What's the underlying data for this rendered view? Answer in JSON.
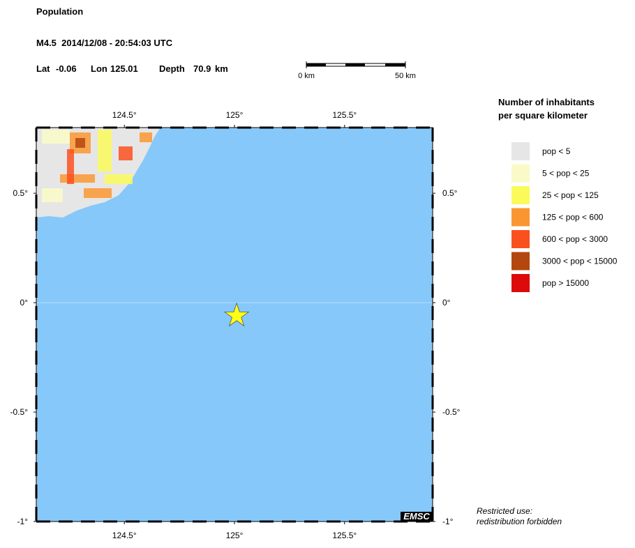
{
  "header": {
    "title": "Population",
    "event": "M4.5  2014/12/08 - 20:54:03 UTC",
    "lat": {
      "label": "Lat",
      "value": -0.06
    },
    "lon": {
      "label": "Lon",
      "value": 125.01
    },
    "depth": {
      "label": "Depth",
      "value": 70.9,
      "unit": "km"
    }
  },
  "scale_bar": {
    "start": "0 km",
    "end": "50 km"
  },
  "map": {
    "xlim": [
      124.1,
      125.9
    ],
    "ylim": [
      -1,
      0.8
    ],
    "xticks": [
      {
        "value": 124.5,
        "label": "124.5°"
      },
      {
        "value": 125,
        "label": "125°"
      },
      {
        "value": 125.5,
        "label": "125.5°"
      }
    ],
    "yticks": [
      {
        "value": 0.5,
        "label": "0.5°"
      },
      {
        "value": 0,
        "label": "0°"
      },
      {
        "value": -0.5,
        "label": "-0.5°"
      },
      {
        "value": -1,
        "label": "-1°"
      }
    ],
    "ocean_color": "#87c8fa",
    "epicenter_color": "#ffff14"
  },
  "legend": {
    "title": [
      "Number of inhabitants",
      "per square kilometer"
    ],
    "items": [
      {
        "label": "pop < 5",
        "color": "#e6e6e6"
      },
      {
        "label": "5 < pop < 25",
        "color": "#fafac8"
      },
      {
        "label": "25 < pop < 125",
        "color": "#fafa5a"
      },
      {
        "label": "125 < pop < 600",
        "color": "#fa9632"
      },
      {
        "label": "600 < pop < 3000",
        "color": "#fa501e"
      },
      {
        "label": "3000 < pop < 15000",
        "color": "#b4460f"
      },
      {
        "label": "pop > 15000",
        "color": "#dc0a0a"
      }
    ]
  },
  "footer": {
    "notice": [
      "Restricted use:",
      "redistribution forbidden"
    ],
    "logo": "EMSC"
  }
}
